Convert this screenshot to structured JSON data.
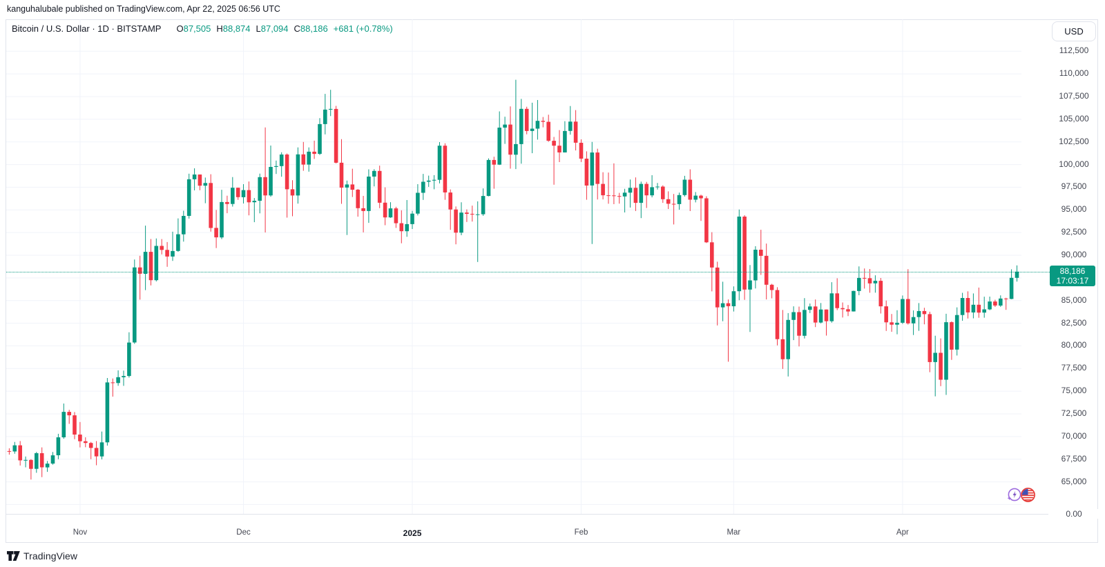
{
  "attribution": {
    "username": "kanguhalubale",
    "rest": " published on TradingView.com, Apr 22, 2025 06:56 UTC"
  },
  "header": {
    "symbol_line": "Bitcoin / U.S. Dollar · 1D · BITSTAMP",
    "ohlc": [
      {
        "k": "O",
        "v": "87,505"
      },
      {
        "k": "H",
        "v": "88,874"
      },
      {
        "k": "L",
        "v": "87,094"
      },
      {
        "k": "C",
        "v": "88,186"
      }
    ],
    "change": "+681 (+0.78%)"
  },
  "currency_button": "USD",
  "price_axis": {
    "ticks": [
      {
        "label": "112,500",
        "value": 112500
      },
      {
        "label": "110,000",
        "value": 110000
      },
      {
        "label": "107,500",
        "value": 107500
      },
      {
        "label": "105,000",
        "value": 105000
      },
      {
        "label": "102,500",
        "value": 102500
      },
      {
        "label": "100,000",
        "value": 100000
      },
      {
        "label": "97,500",
        "value": 97500
      },
      {
        "label": "95,000",
        "value": 95000
      },
      {
        "label": "92,500",
        "value": 92500
      },
      {
        "label": "90,000",
        "value": 90000
      },
      {
        "label": "85,000",
        "value": 85000
      },
      {
        "label": "82,500",
        "value": 82500
      },
      {
        "label": "80,000",
        "value": 80000
      },
      {
        "label": "77,500",
        "value": 77500
      },
      {
        "label": "75,000",
        "value": 75000
      },
      {
        "label": "72,500",
        "value": 72500
      },
      {
        "label": "70,000",
        "value": 70000
      },
      {
        "label": "67,500",
        "value": 67500
      },
      {
        "label": "65,000",
        "value": 65000
      }
    ],
    "zero_label": "0.00",
    "last_price": {
      "label": "88,186",
      "countdown": "17:03:17",
      "value": 88186
    }
  },
  "time_axis": {
    "labels": [
      {
        "label": "Nov",
        "date": "2024-11-01",
        "bold": false
      },
      {
        "label": "Dec",
        "date": "2024-12-01",
        "bold": false
      },
      {
        "label": "2025",
        "date": "2025-01-01",
        "bold": true
      },
      {
        "label": "Feb",
        "date": "2025-02-01",
        "bold": false
      },
      {
        "label": "Mar",
        "date": "2025-03-01",
        "bold": false
      },
      {
        "label": "Apr",
        "date": "2025-04-01",
        "bold": false
      }
    ]
  },
  "footer": {
    "brand": "TradingView"
  },
  "icons": {
    "ai_event": "sparkle-lightning-icon",
    "us_event": "us-flag-icon"
  },
  "colors": {
    "up": "#089981",
    "down": "#f23645",
    "grid": "#f0f3fa",
    "border": "#e0e3eb",
    "text": "#131722",
    "axis_text": "#434651",
    "badge_bg": "#089981"
  },
  "chart_data": {
    "type": "candlestick",
    "title": "Bitcoin / U.S. Dollar",
    "exchange": "BITSTAMP",
    "interval": "1D",
    "unit": "USD",
    "start_date": "2024-10-19",
    "end_date": "2025-04-22",
    "ylim": [
      61500,
      116000
    ],
    "grid": true,
    "last_close": 88186,
    "candles": [
      [
        68400,
        68700,
        68000,
        68350
      ],
      [
        68350,
        69400,
        68100,
        69030
      ],
      [
        69030,
        69500,
        66800,
        67370
      ],
      [
        67370,
        67800,
        66600,
        67415
      ],
      [
        67415,
        67500,
        65260,
        66430
      ],
      [
        66430,
        68300,
        66000,
        68160
      ],
      [
        68160,
        68800,
        65520,
        66600
      ],
      [
        66600,
        67300,
        66100,
        67015
      ],
      [
        67015,
        68300,
        66900,
        67930
      ],
      [
        67930,
        70300,
        67500,
        69910
      ],
      [
        69910,
        73640,
        69750,
        72720
      ],
      [
        72720,
        72950,
        71400,
        72340
      ],
      [
        72340,
        72700,
        69700,
        70215
      ],
      [
        70215,
        71600,
        68800,
        69480
      ],
      [
        69480,
        69910,
        68820,
        69290
      ],
      [
        69290,
        69400,
        67500,
        68740
      ],
      [
        68740,
        69500,
        66830,
        67810
      ],
      [
        67810,
        70550,
        67480,
        69360
      ],
      [
        69360,
        76460,
        69000,
        75970
      ],
      [
        75970,
        76400,
        74400,
        75900
      ],
      [
        75900,
        77300,
        75600,
        76545
      ],
      [
        76545,
        77270,
        75590,
        76680
      ],
      [
        76680,
        81500,
        76500,
        80370
      ],
      [
        80370,
        89530,
        80220,
        88650
      ],
      [
        88650,
        89940,
        85100,
        87950
      ],
      [
        87950,
        93265,
        86150,
        90375
      ],
      [
        90375,
        91790,
        86670,
        87250
      ],
      [
        87250,
        91850,
        87110,
        91030
      ],
      [
        91030,
        91780,
        90090,
        90585
      ],
      [
        90585,
        91450,
        88720,
        89855
      ],
      [
        89855,
        92595,
        89375,
        90465
      ],
      [
        90465,
        94060,
        90370,
        92310
      ],
      [
        92310,
        94905,
        91500,
        94340
      ],
      [
        94340,
        98990,
        94040,
        98380
      ],
      [
        98380,
        99590,
        97155,
        98905
      ],
      [
        98905,
        98910,
        97170,
        97670
      ],
      [
        97670,
        98565,
        95735,
        97970
      ],
      [
        97970,
        98935,
        92600,
        93010
      ],
      [
        93010,
        94995,
        90790,
        91965
      ],
      [
        91965,
        97220,
        91780,
        95865
      ],
      [
        95865,
        96570,
        94630,
        95650
      ],
      [
        95650,
        98620,
        95365,
        97440
      ],
      [
        97440,
        97460,
        96110,
        96405
      ],
      [
        96405,
        97835,
        95710,
        97185
      ],
      [
        97185,
        98130,
        94395,
        95840
      ],
      [
        95840,
        96305,
        93645,
        96000
      ],
      [
        96000,
        99000,
        94620,
        98610
      ],
      [
        98610,
        104090,
        92510,
        96595
      ],
      [
        96595,
        102095,
        96455,
        99740
      ],
      [
        99740,
        100440,
        98965,
        99830
      ],
      [
        99830,
        101350,
        98660,
        101110
      ],
      [
        101110,
        101225,
        94150,
        97275
      ],
      [
        97275,
        98270,
        94300,
        96590
      ],
      [
        96590,
        101890,
        95690,
        101125
      ],
      [
        101125,
        102495,
        99310,
        100000
      ],
      [
        100000,
        101895,
        99215,
        101420
      ],
      [
        101420,
        102635,
        100625,
        101175
      ],
      [
        101175,
        105120,
        101065,
        104465
      ],
      [
        104465,
        107795,
        103330,
        106060
      ],
      [
        106060,
        108245,
        105345,
        106140
      ],
      [
        106140,
        106475,
        100125,
        100205
      ],
      [
        100205,
        102800,
        95670,
        97460
      ],
      [
        97460,
        98235,
        92230,
        97805
      ],
      [
        97805,
        99540,
        96420,
        97225
      ],
      [
        97225,
        97315,
        94250,
        95185
      ],
      [
        95185,
        96540,
        92520,
        94880
      ],
      [
        94880,
        99470,
        93570,
        98675
      ],
      [
        98675,
        99485,
        97590,
        99300
      ],
      [
        99300,
        99885,
        95190,
        95795
      ],
      [
        95795,
        97485,
        93310,
        94165
      ],
      [
        94165,
        95850,
        94120,
        95165
      ],
      [
        95165,
        95340,
        93010,
        93530
      ],
      [
        93530,
        94950,
        91315,
        92645
      ],
      [
        92645,
        96090,
        92035,
        93430
      ],
      [
        93430,
        94885,
        92890,
        94590
      ],
      [
        94590,
        97840,
        94390,
        96885
      ],
      [
        96885,
        98970,
        96100,
        98105
      ],
      [
        98105,
        98780,
        97540,
        98235
      ],
      [
        98235,
        98835,
        97275,
        98315
      ],
      [
        98315,
        102480,
        97920,
        102080
      ],
      [
        102080,
        102350,
        96110,
        96920
      ],
      [
        96920,
        97255,
        92800,
        95045
      ],
      [
        95045,
        95380,
        91205,
        92485
      ],
      [
        92485,
        95835,
        92205,
        94700
      ],
      [
        94700,
        95050,
        93670,
        94565
      ],
      [
        94565,
        95470,
        93710,
        94490
      ],
      [
        94490,
        95940,
        89255,
        94515
      ],
      [
        94515,
        97370,
        94345,
        96535
      ],
      [
        96535,
        100680,
        96500,
        100505
      ],
      [
        100505,
        100865,
        97335,
        99990
      ],
      [
        99990,
        105865,
        99950,
        104075
      ],
      [
        104075,
        105280,
        102280,
        104410
      ],
      [
        104410,
        106420,
        99550,
        101090
      ],
      [
        101090,
        109360,
        99505,
        102260
      ],
      [
        102260,
        107240,
        100100,
        106145
      ],
      [
        106145,
        106385,
        103340,
        103705
      ],
      [
        103705,
        106820,
        101250,
        103960
      ],
      [
        103960,
        107120,
        102750,
        104820
      ],
      [
        104820,
        105250,
        104110,
        104715
      ],
      [
        104715,
        105500,
        102520,
        102620
      ],
      [
        102620,
        103050,
        97775,
        102080
      ],
      [
        102080,
        103800,
        100270,
        101335
      ],
      [
        101335,
        104780,
        101330,
        103705
      ],
      [
        103705,
        106455,
        103300,
        104735
      ],
      [
        104735,
        106010,
        101560,
        102405
      ],
      [
        102405,
        102785,
        100280,
        100655
      ],
      [
        100655,
        101460,
        96120,
        97690
      ],
      [
        97690,
        102500,
        91230,
        101330
      ],
      [
        101330,
        101745,
        96150,
        97870
      ],
      [
        97870,
        99150,
        96155,
        96615
      ],
      [
        96615,
        99120,
        95675,
        96595
      ],
      [
        96595,
        100135,
        95630,
        96530
      ],
      [
        96530,
        96880,
        95690,
        96480
      ],
      [
        96480,
        97325,
        94715,
        96900
      ],
      [
        96900,
        98345,
        95255,
        97435
      ],
      [
        97435,
        98585,
        94875,
        95780
      ],
      [
        95780,
        98120,
        94090,
        97870
      ],
      [
        97870,
        98085,
        95215,
        96605
      ],
      [
        96605,
        98825,
        96380,
        97500
      ],
      [
        97500,
        97970,
        97240,
        97570
      ],
      [
        97570,
        97705,
        95775,
        96175
      ],
      [
        96175,
        97045,
        95095,
        95670
      ],
      [
        95670,
        96755,
        93390,
        95635
      ],
      [
        95635,
        96900,
        95025,
        96635
      ],
      [
        96635,
        98755,
        96475,
        98335
      ],
      [
        98335,
        99475,
        94870,
        96125
      ],
      [
        96125,
        96970,
        95825,
        96575
      ],
      [
        96575,
        96675,
        93790,
        96275
      ],
      [
        96275,
        96505,
        91350,
        91420
      ],
      [
        91420,
        92540,
        86010,
        88640
      ],
      [
        88640,
        89285,
        82255,
        84250
      ],
      [
        84250,
        87080,
        82715,
        84705
      ],
      [
        84705,
        85120,
        78250,
        84375
      ],
      [
        84375,
        86560,
        83795,
        86030
      ],
      [
        86030,
        95045,
        85040,
        94260
      ],
      [
        94260,
        94415,
        85080,
        86210
      ],
      [
        86210,
        88910,
        81530,
        87220
      ],
      [
        87220,
        91000,
        86335,
        90605
      ],
      [
        90605,
        92810,
        87835,
        89930
      ],
      [
        89930,
        91285,
        85120,
        86740
      ],
      [
        86740,
        86845,
        85245,
        86155
      ],
      [
        86155,
        86470,
        80050,
        80735
      ],
      [
        80735,
        83955,
        77460,
        78530
      ],
      [
        78530,
        83620,
        76625,
        82860
      ],
      [
        82860,
        84360,
        80635,
        83720
      ],
      [
        83720,
        84335,
        79930,
        81115
      ],
      [
        81115,
        85265,
        80820,
        83970
      ],
      [
        83970,
        84675,
        83620,
        84345
      ],
      [
        84345,
        85115,
        82070,
        82575
      ],
      [
        82575,
        84725,
        82480,
        84010
      ],
      [
        84010,
        84020,
        81135,
        82720
      ],
      [
        82720,
        87025,
        82555,
        85795
      ],
      [
        85795,
        87455,
        83940,
        84165
      ],
      [
        84165,
        84790,
        83130,
        84045
      ],
      [
        84045,
        84515,
        83290,
        83795
      ],
      [
        83795,
        86090,
        83780,
        86055
      ],
      [
        86055,
        88765,
        85590,
        87500
      ],
      [
        87500,
        88540,
        86320,
        87470
      ],
      [
        87470,
        88475,
        85860,
        86895
      ],
      [
        86895,
        87785,
        85870,
        87175
      ],
      [
        87175,
        87490,
        83570,
        84360
      ],
      [
        84360,
        85000,
        81645,
        82595
      ],
      [
        82595,
        83520,
        81555,
        82335
      ],
      [
        82335,
        83930,
        81280,
        82550
      ],
      [
        82550,
        85560,
        82425,
        85170
      ],
      [
        85170,
        88465,
        82350,
        82485
      ],
      [
        82485,
        83910,
        81200,
        83175
      ],
      [
        83175,
        84720,
        81660,
        83845
      ],
      [
        83845,
        84205,
        82375,
        83505
      ],
      [
        83505,
        83770,
        77095,
        78215
      ],
      [
        78215,
        81120,
        74435,
        79235
      ],
      [
        79235,
        80825,
        75555,
        76270
      ],
      [
        76270,
        83540,
        74590,
        82615
      ],
      [
        82615,
        82700,
        78455,
        79590
      ],
      [
        79590,
        84245,
        78935,
        83405
      ],
      [
        83405,
        85855,
        82770,
        85285
      ],
      [
        85285,
        86015,
        83025,
        83685
      ],
      [
        83685,
        85785,
        83035,
        84540
      ],
      [
        84540,
        86430,
        83100,
        83670
      ],
      [
        83670,
        85430,
        83105,
        84030
      ],
      [
        84030,
        85435,
        83935,
        84895
      ],
      [
        84895,
        85095,
        84290,
        84450
      ],
      [
        84450,
        85570,
        84300,
        85225
      ],
      [
        85225,
        85305,
        83975,
        85175
      ],
      [
        85175,
        88445,
        85145,
        87505
      ],
      [
        87505,
        88874,
        87094,
        88186
      ]
    ]
  }
}
